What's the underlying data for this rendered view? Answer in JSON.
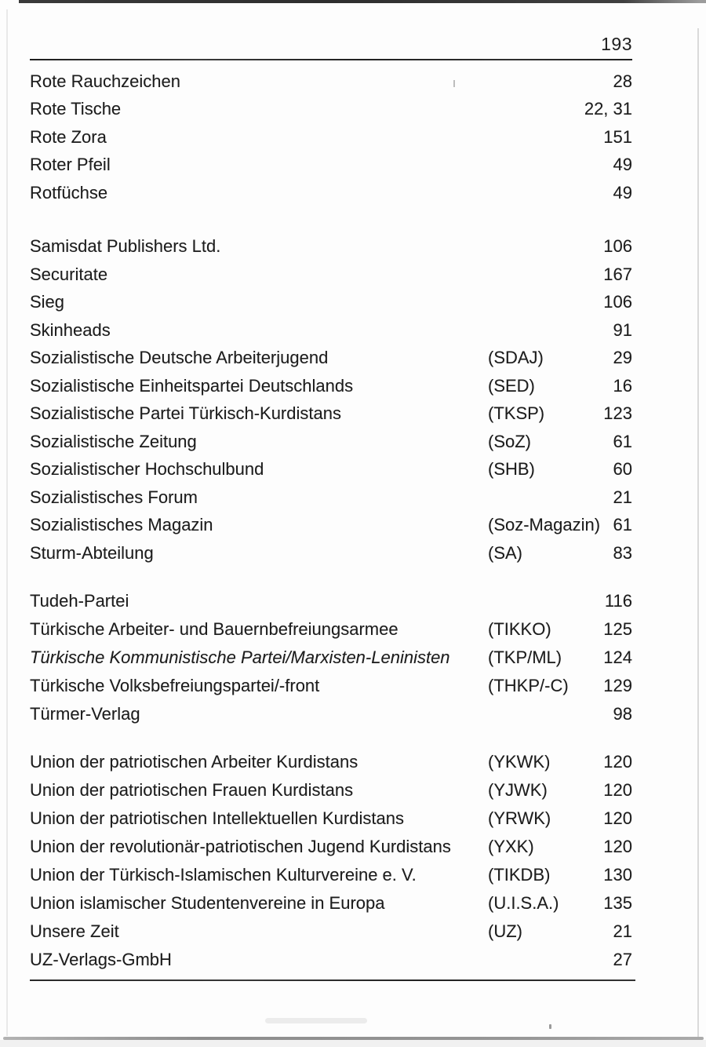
{
  "page_header": {
    "page_number": "193"
  },
  "index": {
    "sections": [
      {
        "rows": [
          {
            "name": "Rote Rauchzeichen",
            "abbr": "",
            "pages": "28"
          },
          {
            "name": "Rote Tische",
            "abbr": "",
            "pages": "22, 31"
          },
          {
            "name": "Rote Zora",
            "abbr": "",
            "pages": "151"
          },
          {
            "name": "Roter Pfeil",
            "abbr": "",
            "pages": "49"
          },
          {
            "name": "Rotfüchse",
            "abbr": "",
            "pages": "49"
          }
        ]
      },
      {
        "rows": [
          {
            "name": "Samisdat Publishers Ltd.",
            "abbr": "",
            "pages": "106"
          },
          {
            "name": "Securitate",
            "abbr": "",
            "pages": "167"
          },
          {
            "name": "Sieg",
            "abbr": "",
            "pages": "106"
          },
          {
            "name": "Skinheads",
            "abbr": "",
            "pages": "91"
          },
          {
            "name": "Sozialistische Deutsche Arbeiterjugend",
            "abbr": "(SDAJ)",
            "pages": "29"
          },
          {
            "name": "Sozialistische Einheitspartei Deutschlands",
            "abbr": "(SED)",
            "pages": "16"
          },
          {
            "name": "Sozialistische Partei Türkisch-Kurdistans",
            "abbr": "(TKSP)",
            "pages": "123"
          },
          {
            "name": "Sozialistische Zeitung",
            "abbr": "(SoZ)",
            "pages": "61"
          },
          {
            "name": "Sozialistischer Hochschulbund",
            "abbr": "(SHB)",
            "pages": "60"
          },
          {
            "name": "Sozialistisches Forum",
            "abbr": "",
            "pages": "21"
          },
          {
            "name": "Sozialistisches Magazin",
            "abbr": "(Soz-Magazin)",
            "pages": "61"
          },
          {
            "name": "Sturm-Abteilung",
            "abbr": "(SA)",
            "pages": "83"
          }
        ]
      },
      {
        "rows": [
          {
            "name": "Tudeh-Partei",
            "abbr": "",
            "pages": "116"
          },
          {
            "name": "Türkische Arbeiter- und Bauernbefreiungsarmee",
            "abbr": "(TIKKO)",
            "pages": "125"
          },
          {
            "name": "Türkische Kommunistische Partei/Marxisten-Leninisten",
            "abbr": "(TKP/ML)",
            "pages": "124",
            "italic": true
          },
          {
            "name": "Türkische Volksbefreiungspartei/-front",
            "abbr": "(THKP/-C)",
            "pages": "129"
          },
          {
            "name": "Türmer-Verlag",
            "abbr": "",
            "pages": "98"
          }
        ]
      },
      {
        "rows": [
          {
            "name": "Union der patriotischen Arbeiter Kurdistans",
            "abbr": "(YKWK)",
            "pages": "120"
          },
          {
            "name": "Union der patriotischen Frauen Kurdistans",
            "abbr": "(YJWK)",
            "pages": "120"
          },
          {
            "name": "Union der patriotischen Intellektuellen Kurdistans",
            "abbr": "(YRWK)",
            "pages": "120"
          },
          {
            "name": "Union der revolutionär-patriotischen Jugend Kurdistans",
            "abbr": "(YXK)",
            "pages": "120"
          },
          {
            "name": "Union der Türkisch-Islamischen Kulturvereine e. V.",
            "abbr": "(TIKDB)",
            "pages": "130"
          },
          {
            "name": "Union islamischer Studentenvereine in Europa",
            "abbr": "(U.I.S.A.)",
            "pages": "135"
          },
          {
            "name": "Unsere Zeit",
            "abbr": "(UZ)",
            "pages": "21"
          },
          {
            "name": "UZ-Verlags-GmbH",
            "abbr": "",
            "pages": "27"
          }
        ]
      }
    ]
  }
}
